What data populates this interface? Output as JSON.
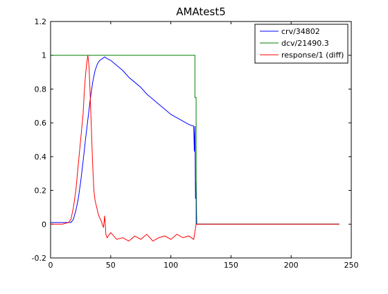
{
  "chart_data": {
    "type": "line",
    "title": "AMAtest5",
    "xlabel": "",
    "ylabel": "",
    "xlim": [
      0,
      250
    ],
    "ylim": [
      -0.2,
      1.2
    ],
    "xticks": [
      0,
      50,
      100,
      150,
      200,
      250
    ],
    "yticks": [
      -0.2,
      0,
      0.2,
      0.4,
      0.6,
      0.8,
      1,
      1.2
    ],
    "xtick_labels": [
      "0",
      "50",
      "100",
      "150",
      "200",
      "250"
    ],
    "ytick_labels": [
      "-0.2",
      "0",
      "0.2",
      "0.4",
      "0.6",
      "0.8",
      "1",
      "1.2"
    ],
    "grid": false,
    "legend_position": "top-right",
    "series": [
      {
        "name": "crv/34802",
        "color": "#0000ff",
        "x": [
          0,
          10,
          17,
          19,
          21,
          23,
          25,
          27,
          29,
          31,
          33,
          35,
          37,
          39,
          41,
          43,
          45,
          47,
          50,
          55,
          60,
          65,
          70,
          75,
          80,
          85,
          90,
          95,
          100,
          105,
          110,
          115,
          119,
          119.5,
          120,
          120.5,
          121,
          121.5,
          122,
          130,
          150,
          200,
          240
        ],
        "y": [
          0.01,
          0.01,
          0.01,
          0.03,
          0.08,
          0.15,
          0.25,
          0.37,
          0.5,
          0.62,
          0.74,
          0.84,
          0.91,
          0.95,
          0.97,
          0.98,
          0.99,
          0.98,
          0.97,
          0.94,
          0.91,
          0.87,
          0.84,
          0.81,
          0.77,
          0.74,
          0.71,
          0.68,
          0.65,
          0.63,
          0.61,
          0.59,
          0.58,
          0.43,
          0.58,
          0.15,
          0.25,
          0.0,
          0.0,
          0.0,
          0.0,
          0.0,
          0.0
        ]
      },
      {
        "name": "dcv/21490.3",
        "color": "#008000",
        "x": [
          0,
          120,
          120,
          121,
          121,
          240
        ],
        "y": [
          1.0,
          1.0,
          0.75,
          0.75,
          0.0,
          0.0
        ]
      },
      {
        "name": "response/1 (diff)",
        "color": "#ff0000",
        "x": [
          0,
          10,
          15,
          17,
          19,
          21,
          23,
          25,
          27,
          28,
          29,
          30,
          31,
          32,
          33,
          34,
          35,
          36,
          37,
          38,
          39,
          40,
          42,
          44,
          45,
          46,
          47,
          50,
          55,
          60,
          65,
          70,
          75,
          80,
          85,
          90,
          95,
          100,
          105,
          110,
          115,
          119,
          121,
          122,
          130,
          150,
          200,
          240
        ],
        "y": [
          0.0,
          0.0,
          0.01,
          0.03,
          0.1,
          0.2,
          0.35,
          0.5,
          0.65,
          0.78,
          0.88,
          0.95,
          1.0,
          0.93,
          0.75,
          0.55,
          0.35,
          0.2,
          0.14,
          0.11,
          0.08,
          0.05,
          0.02,
          -0.02,
          0.05,
          -0.06,
          -0.08,
          -0.05,
          -0.09,
          -0.08,
          -0.1,
          -0.07,
          -0.09,
          -0.06,
          -0.1,
          -0.08,
          -0.07,
          -0.09,
          -0.06,
          -0.08,
          -0.07,
          -0.09,
          0.0,
          0.0,
          0.0,
          0.0,
          0.0,
          0.0
        ]
      }
    ]
  }
}
